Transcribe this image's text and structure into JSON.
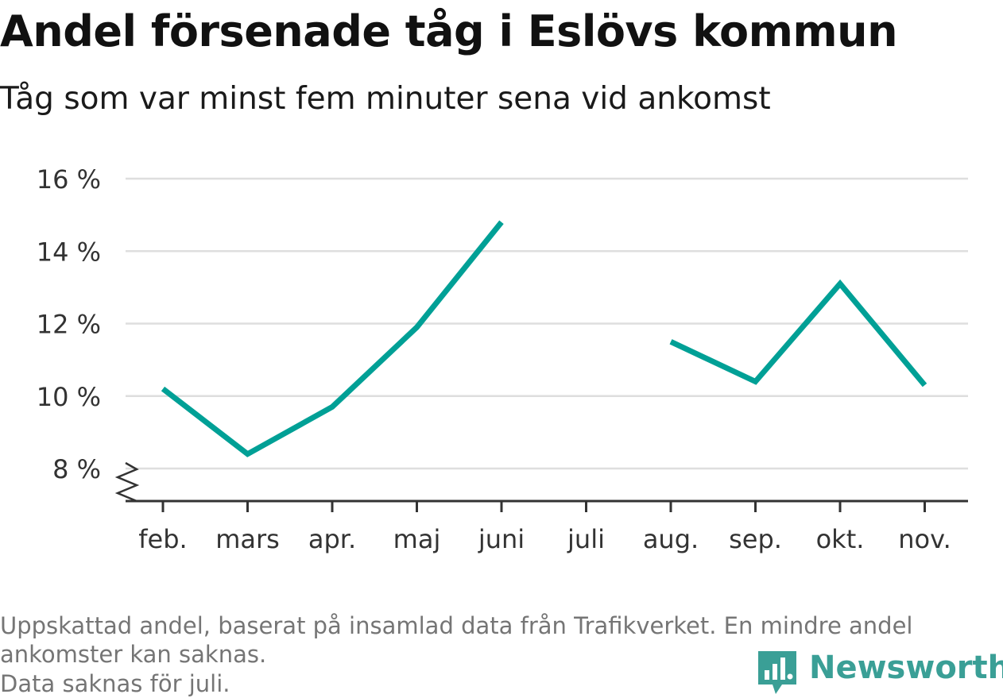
{
  "header": {
    "title": "Andel försenade tåg i Eslövs kommun",
    "subtitle": "Tåg som var minst fem minuter sena vid ankomst"
  },
  "chart_data": {
    "type": "line",
    "title": "Andel försenade tåg i Eslövs kommun",
    "subtitle": "Tåg som var minst fem minuter sena vid ankomst",
    "categories": [
      "feb.",
      "mars",
      "apr.",
      "maj",
      "juni",
      "juli",
      "aug.",
      "sep.",
      "okt.",
      "nov."
    ],
    "series": [
      {
        "values": [
          10.2,
          8.4,
          9.7,
          11.9,
          14.8,
          null,
          11.5,
          10.4,
          13.1,
          10.3
        ]
      }
    ],
    "y_ticks": [
      8,
      10,
      12,
      14,
      16
    ],
    "y_tick_labels": [
      "8 %",
      "10 %",
      "12 %",
      "14 %",
      "16 %"
    ],
    "ylim": [
      8,
      16
    ],
    "y_axis_break": true,
    "grid": true,
    "line_color": "#00a096",
    "grid_color": "#dedede",
    "axis_color": "#333333"
  },
  "footer": {
    "note_line1": "Uppskattad andel, baserat på insamlad data från Trafikverket. En mindre andel",
    "note_line2": "ankomster kan saknas.",
    "note_line3": "Data saknas för juli.",
    "brand": "Newsworthy",
    "brand_color": "#3a9f96"
  }
}
